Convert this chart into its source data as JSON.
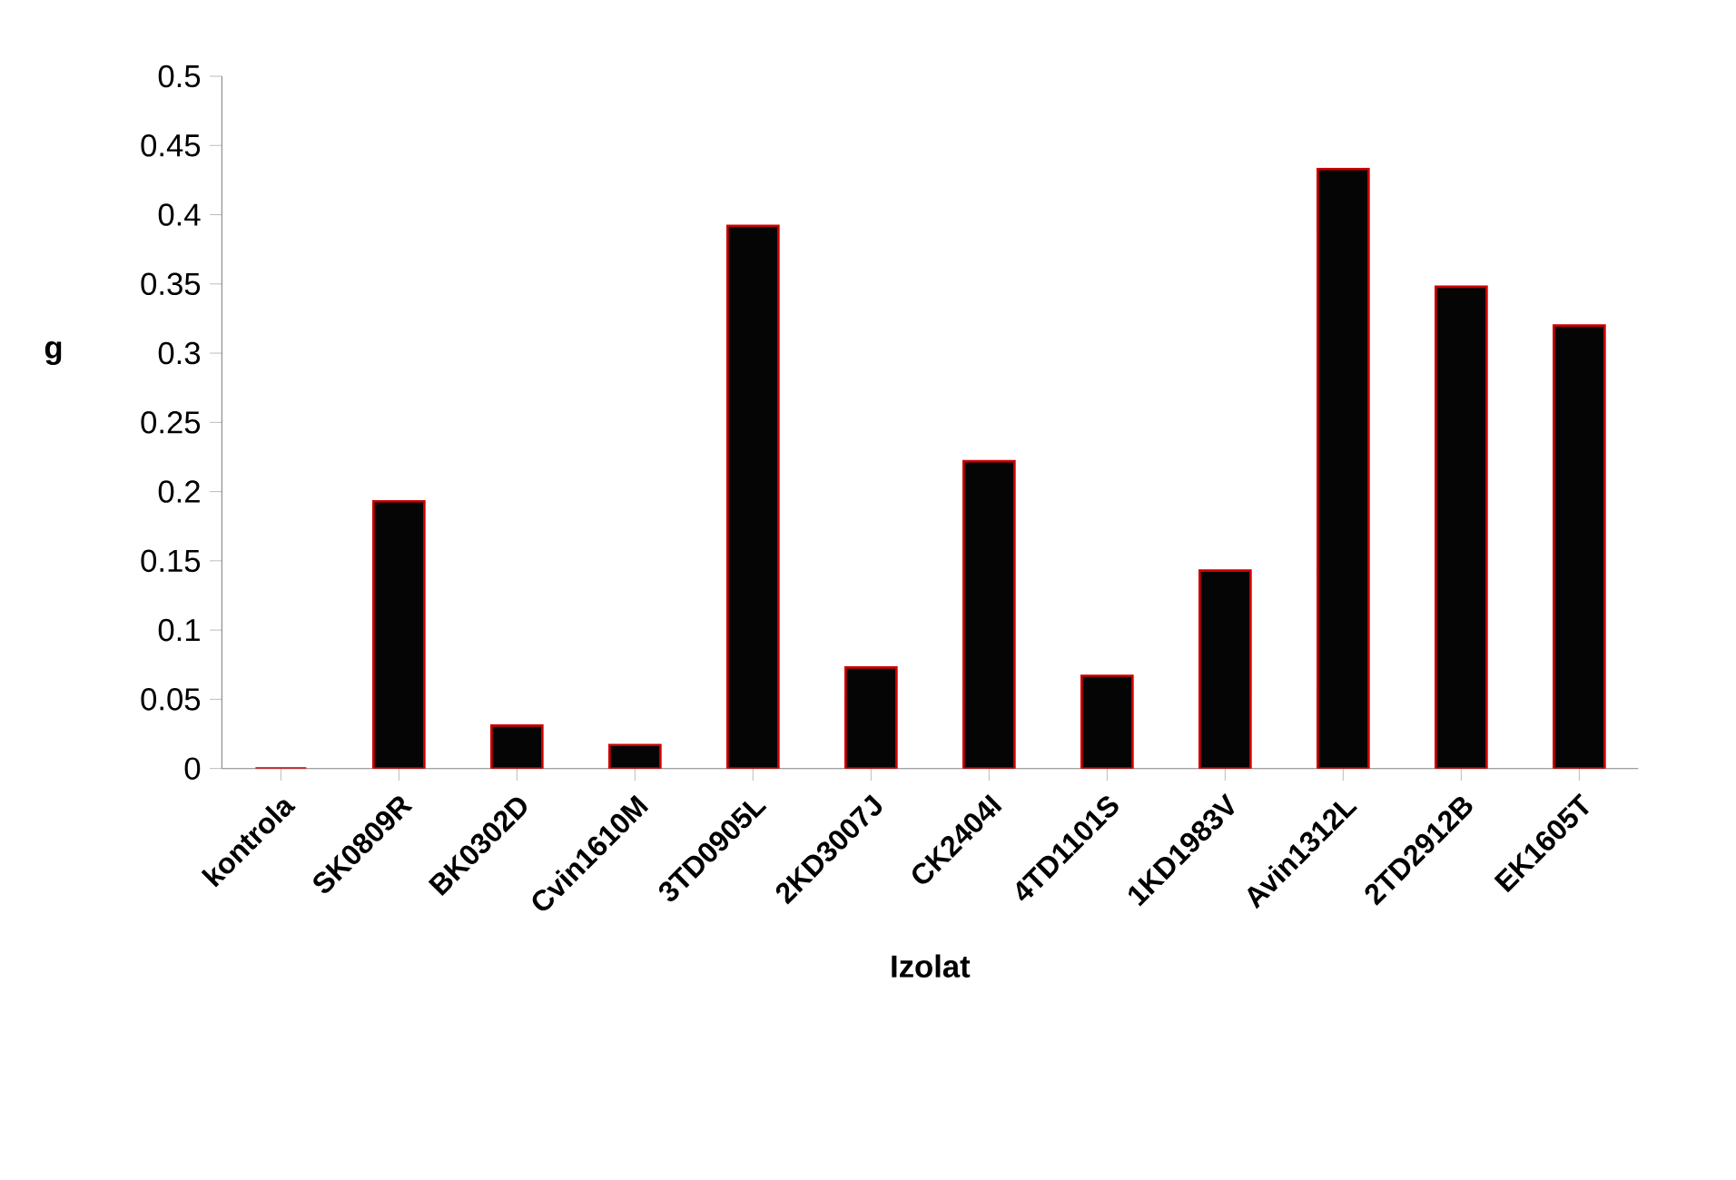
{
  "chart_data": {
    "type": "bar",
    "xlabel": "Izolat",
    "ylabel": "g",
    "categories": [
      "kontrola",
      "SK0809R",
      "BK0302D",
      "Cvin1610M",
      "3TD0905L",
      "2KD3007J",
      "CK2404I",
      "4TD1101S",
      "1KD1983V",
      "Avin1312L",
      "2TD2912B",
      "EK1605T"
    ],
    "values": [
      0,
      0.193,
      0.031,
      0.017,
      0.392,
      0.073,
      0.222,
      0.067,
      0.143,
      0.433,
      0.348,
      0.32
    ],
    "color": "#050505",
    "ylim": [
      0,
      0.5
    ],
    "yticks": [
      0,
      0.05,
      0.1,
      0.15,
      0.2,
      0.25,
      0.3,
      0.35,
      0.4,
      0.45,
      0.5
    ],
    "grid": false
  }
}
